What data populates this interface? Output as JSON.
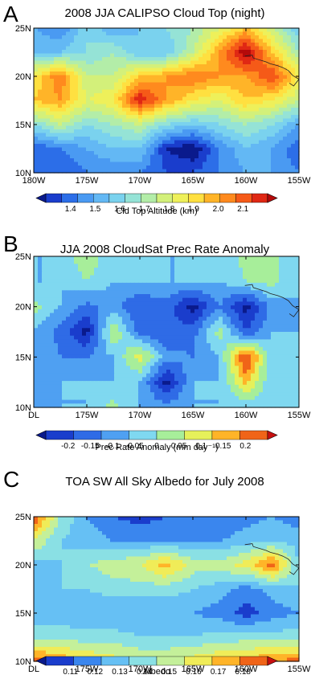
{
  "chart_data": [
    {
      "panel_label": "A",
      "type": "heatmap",
      "title": "2008 JJA CALIPSO Cloud Top (night)",
      "x_ticks": [
        "180W",
        "175W",
        "170W",
        "165W",
        "160W",
        "155W"
      ],
      "y_ticks": [
        "10N",
        "15N",
        "20N",
        "25N"
      ],
      "xlim": [
        -180,
        -155
      ],
      "ylim": [
        10,
        25
      ],
      "colorbar_label": "Cld Top Altitude (km)",
      "colorbar_ticks": [
        "1.4",
        "1.5",
        "1.6",
        "1.7",
        "1.8",
        "1.9",
        "2.0",
        "2.1"
      ],
      "levels": [
        1.35,
        1.4,
        1.45,
        1.5,
        1.55,
        1.6,
        1.65,
        1.7,
        1.75,
        1.8,
        1.85,
        1.9,
        1.95,
        2.0,
        2.05,
        2.1,
        2.15
      ],
      "x": [
        -180,
        -177.5,
        -175,
        -172.5,
        -170,
        -167.5,
        -165,
        -162.5,
        -160,
        -157.5,
        -155
      ],
      "y": [
        10,
        12.5,
        15,
        17.5,
        20,
        22.5,
        25
      ],
      "values": [
        [
          1.45,
          1.45,
          1.5,
          1.5,
          1.5,
          1.45,
          1.45,
          1.5,
          1.55,
          1.55,
          1.5
        ],
        [
          1.45,
          1.5,
          1.55,
          1.6,
          1.6,
          1.4,
          1.35,
          1.5,
          1.6,
          1.55,
          1.45
        ],
        [
          1.65,
          1.75,
          1.65,
          1.7,
          1.75,
          1.65,
          1.6,
          1.65,
          1.7,
          1.65,
          1.55
        ],
        [
          1.9,
          1.95,
          1.8,
          1.85,
          2.1,
          1.95,
          1.85,
          1.8,
          1.9,
          1.85,
          1.75
        ],
        [
          1.85,
          2.0,
          1.75,
          1.75,
          1.9,
          1.95,
          2.0,
          1.95,
          1.95,
          2.05,
          1.85
        ],
        [
          1.6,
          1.6,
          1.65,
          1.7,
          1.6,
          1.6,
          1.75,
          1.95,
          2.15,
          1.9,
          1.7
        ],
        [
          1.55,
          1.5,
          1.65,
          1.55,
          1.6,
          1.65,
          1.7,
          1.8,
          1.9,
          1.75,
          1.6
        ]
      ],
      "colors": [
        "#0a1a8c",
        "#1a3dcc",
        "#2c6ee8",
        "#4a9af2",
        "#63b8f4",
        "#7ad2ee",
        "#95e3d6",
        "#b3eda8",
        "#d3f07a",
        "#eef05a",
        "#ffe040",
        "#ffb428",
        "#ff8a1e",
        "#f55a18",
        "#e02814",
        "#b40a0a"
      ]
    },
    {
      "panel_label": "B",
      "type": "heatmap",
      "title": "JJA 2008 CloudSat Prec Rate Anomaly",
      "x_ticks": [
        "DL",
        "175W",
        "170W",
        "165W",
        "160W",
        "155W"
      ],
      "y_ticks": [
        "10N",
        "15N",
        "20N",
        "25N"
      ],
      "xlim": [
        -180,
        -155
      ],
      "ylim": [
        10,
        25
      ],
      "colorbar_label": "Prec Rate Anomaly (mm day⁻¹)",
      "colorbar_ticks": [
        "-0.2",
        "-0.15",
        "-0.1",
        "-0.05",
        "0",
        "0.05",
        "0.1",
        "0.15",
        "0.2"
      ],
      "levels": [
        -0.25,
        -0.2,
        -0.15,
        -0.1,
        -0.05,
        0.0,
        0.05,
        0.1,
        0.15,
        0.2,
        0.25
      ],
      "x": [
        -180,
        -177.5,
        -175,
        -172.5,
        -170,
        -167.5,
        -165,
        -162.5,
        -160,
        -157.5,
        -155
      ],
      "y": [
        10,
        12.5,
        15,
        17.5,
        20,
        22.5,
        25
      ],
      "values": [
        [
          -0.05,
          -0.05,
          -0.05,
          0.02,
          -0.05,
          -0.08,
          -0.05,
          -0.05,
          -0.05,
          -0.02,
          -0.03
        ],
        [
          -0.1,
          -0.05,
          -0.05,
          -0.05,
          -0.05,
          -0.22,
          -0.05,
          -0.05,
          0.12,
          -0.05,
          -0.05
        ],
        [
          -0.05,
          -0.1,
          -0.1,
          -0.05,
          0.08,
          -0.08,
          -0.1,
          -0.05,
          0.22,
          -0.05,
          -0.05
        ],
        [
          -0.05,
          -0.12,
          -0.22,
          0.05,
          -0.12,
          -0.15,
          -0.12,
          0.02,
          -0.15,
          -0.05,
          -0.05
        ],
        [
          0.02,
          -0.05,
          -0.12,
          -0.08,
          -0.15,
          -0.12,
          -0.22,
          -0.1,
          -0.22,
          -0.08,
          -0.05
        ],
        [
          -0.05,
          -0.05,
          0.0,
          -0.05,
          -0.05,
          -0.05,
          -0.05,
          -0.05,
          0.0,
          0.02,
          -0.05
        ],
        [
          -0.05,
          -0.05,
          0.05,
          -0.05,
          -0.05,
          -0.05,
          -0.05,
          -0.05,
          0.02,
          0.02,
          -0.05
        ]
      ],
      "colors": [
        "#0a1a8c",
        "#1a3dcc",
        "#2f6be6",
        "#4fa0f2",
        "#7fd8f0",
        "#a7ee9a",
        "#e6f05a",
        "#ffb428",
        "#f06418",
        "#c81010"
      ]
    },
    {
      "panel_label": "C",
      "type": "heatmap",
      "title": "TOA SW All Sky Albedo for July 2008",
      "x_ticks": [
        "DL",
        "175W",
        "170W",
        "165W",
        "160W",
        "155W"
      ],
      "y_ticks": [
        "10N",
        "15N",
        "20N",
        "25N"
      ],
      "xlim": [
        -180,
        -155
      ],
      "ylim": [
        10,
        25
      ],
      "colorbar_label": "Albedo",
      "colorbar_ticks": [
        "0.11",
        "0.12",
        "0.13",
        "0.14",
        "0.15",
        "0.16",
        "0.17",
        "0.18"
      ],
      "levels": [
        0.1,
        0.11,
        0.12,
        0.13,
        0.14,
        0.15,
        0.16,
        0.17,
        0.18,
        0.19
      ],
      "x": [
        -180,
        -177.5,
        -175,
        -172.5,
        -170,
        -167.5,
        -165,
        -162.5,
        -160,
        -157.5,
        -155
      ],
      "y": [
        10,
        12.5,
        15,
        17.5,
        20,
        22.5,
        25
      ],
      "values": [
        [
          0.19,
          0.18,
          0.17,
          0.165,
          0.16,
          0.16,
          0.165,
          0.17,
          0.175,
          0.18,
          0.185
        ],
        [
          0.145,
          0.145,
          0.145,
          0.145,
          0.14,
          0.14,
          0.14,
          0.145,
          0.145,
          0.145,
          0.145
        ],
        [
          0.135,
          0.135,
          0.13,
          0.13,
          0.13,
          0.13,
          0.13,
          0.125,
          0.115,
          0.125,
          0.13
        ],
        [
          0.135,
          0.14,
          0.14,
          0.145,
          0.145,
          0.145,
          0.14,
          0.135,
          0.125,
          0.135,
          0.14
        ],
        [
          0.135,
          0.14,
          0.15,
          0.155,
          0.16,
          0.175,
          0.155,
          0.155,
          0.165,
          0.185,
          0.14
        ],
        [
          0.16,
          0.14,
          0.135,
          0.13,
          0.13,
          0.13,
          0.13,
          0.13,
          0.135,
          0.14,
          0.135
        ],
        [
          0.19,
          0.15,
          0.13,
          0.12,
          0.115,
          0.12,
          0.12,
          0.12,
          0.125,
          0.13,
          0.125
        ]
      ],
      "colors": [
        "#0a1a8c",
        "#1a3dcc",
        "#3a86ee",
        "#66c0f4",
        "#8ae0e4",
        "#c4f09a",
        "#f0ec58",
        "#ffb428",
        "#f06418",
        "#c81010"
      ]
    }
  ]
}
